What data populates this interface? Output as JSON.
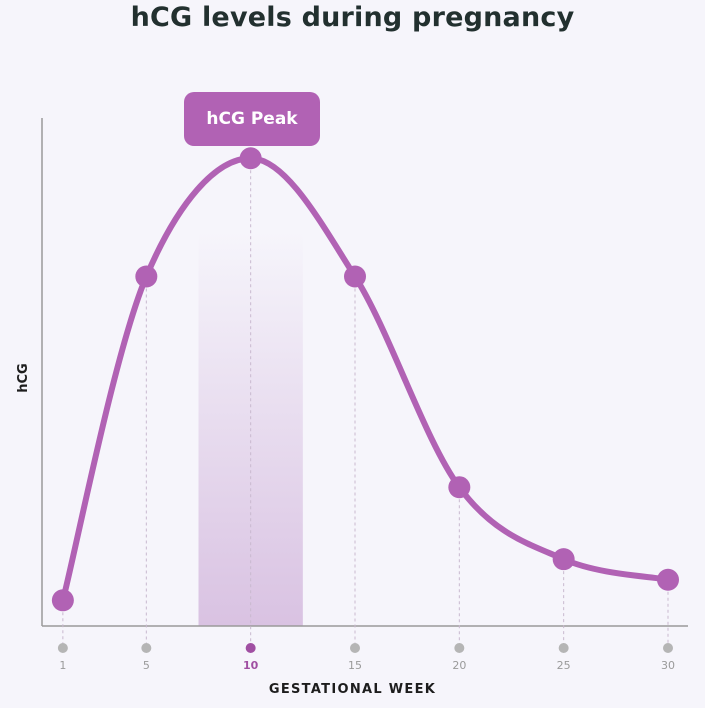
{
  "chart_data": {
    "type": "line",
    "title": "hCG levels during pregnancy",
    "xlabel": "GESTATIONAL WEEK",
    "ylabel": "hCG",
    "annotation": "hCG Peak",
    "highlight_range": [
      7.5,
      12.5
    ],
    "highlight_tick": 10,
    "x": [
      1,
      5,
      10,
      15,
      20,
      25,
      30
    ],
    "values": [
      0.05,
      0.68,
      0.91,
      0.68,
      0.27,
      0.13,
      0.09
    ],
    "xlim": [
      0,
      30
    ],
    "ylim": [
      0,
      1
    ],
    "grid": false,
    "colors": {
      "line": "#b162b4",
      "band": "#d9c2e2",
      "tick_dot": "#b5b5b5",
      "tick_dot_highlight": "#a04fa2",
      "tick_label": "#9a9a9a",
      "tick_label_highlight": "#a04fa2"
    }
  }
}
